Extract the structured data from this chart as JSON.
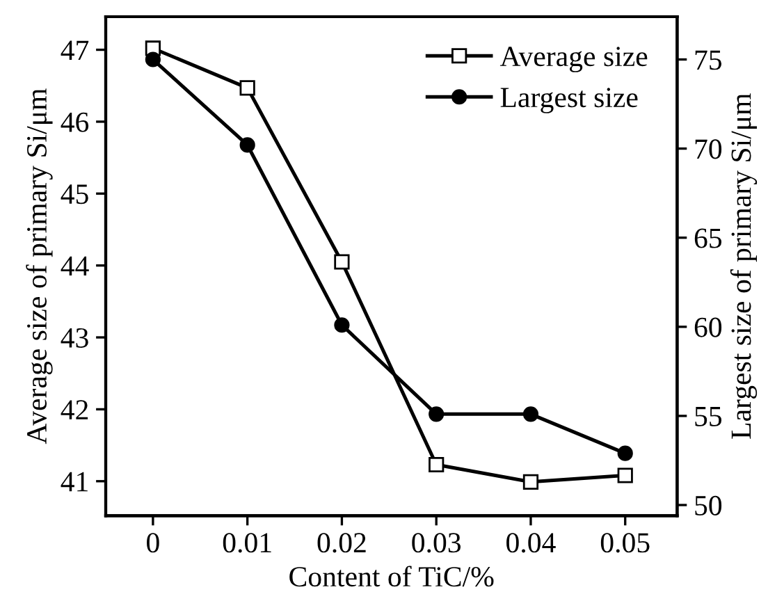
{
  "chart_data": {
    "type": "line",
    "xlabel": "Content of TiC/%",
    "ylabel": "Average size of primary Si/μm",
    "y2label": "Largest size of primary Si/μm",
    "x": [
      0,
      0.01,
      0.02,
      0.03,
      0.04,
      0.05
    ],
    "series": [
      {
        "name": "Average size",
        "color": "#000000",
        "marker": "square",
        "values": [
          47.02,
          46.47,
          44.05,
          41.23,
          40.99,
          41.08
        ]
      },
      {
        "name": "Largest size",
        "color": "#000000",
        "marker": "circle",
        "axis": "y2",
        "values": [
          75.0,
          70.2,
          60.1,
          55.1,
          55.1,
          52.9
        ]
      }
    ],
    "xlim": [
      -0.005,
      0.0555
    ],
    "xticks": [
      {
        "value": 0,
        "label": "0"
      },
      0.01,
      0.02,
      0.03,
      0.04,
      0.05
    ],
    "ylim": [
      40.52,
      47.46
    ],
    "yticks": [
      41,
      42,
      43,
      44,
      45,
      46,
      47
    ],
    "y2lim": [
      49.4,
      77.4
    ],
    "y2ticks": [
      50,
      55,
      60,
      65,
      70,
      75
    ],
    "legend": "top right",
    "grid": false,
    "line_style": "solid"
  }
}
